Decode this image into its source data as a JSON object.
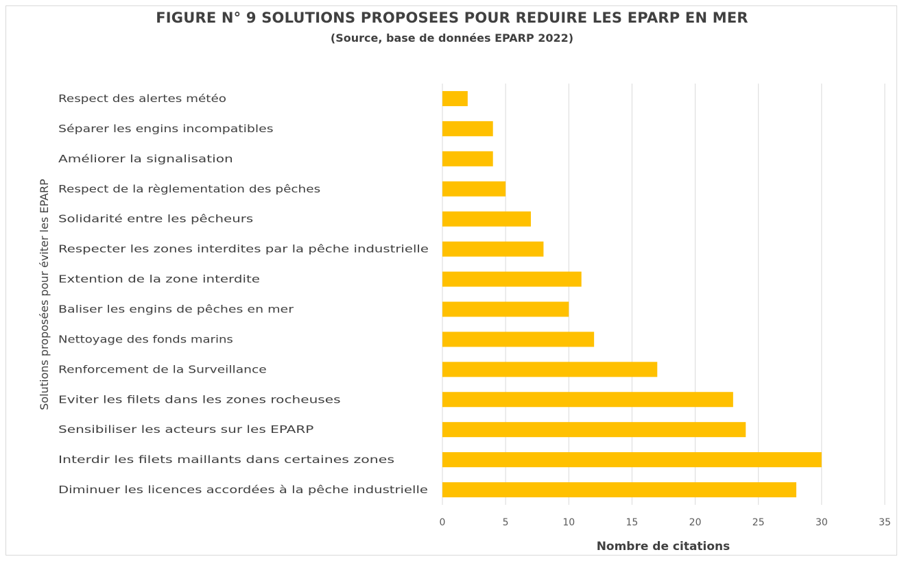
{
  "chart_data": {
    "type": "bar",
    "orientation": "horizontal",
    "title": "FIGURE N° 9 SOLUTIONS PROPOSEES POUR REDUIRE LES EPARP EN MER",
    "subtitle": "(Source, base de données EPARP 2022)",
    "xlabel": "Nombre de citations",
    "ylabel": "Solutions proposées pour éviter les EPARP",
    "xlim": [
      0,
      35
    ],
    "xticks": [
      0,
      5,
      10,
      15,
      20,
      25,
      30,
      35
    ],
    "grid": true,
    "legend": "none",
    "bar_color": "#FFC000",
    "categories": [
      "Respect des alertes météo",
      "Séparer les engins incompatibles",
      "Améliorer la signalisation",
      "Respect de la règlementation des pêches",
      "Solidarité entre les pêcheurs",
      "Respecter les zones interdites par la pêche industrielle",
      "Extention de la zone interdite",
      "Baliser les engins de pêches en mer",
      "Nettoyage des fonds marins",
      "Renforcement de la Surveillance",
      "Eviter les filets dans les zones rocheuses",
      "Sensibiliser les acteurs sur les EPARP",
      "Interdir les filets maillants dans certaines zones",
      "Diminuer les licences accordées à la pêche industrielle"
    ],
    "values": [
      2,
      4,
      4,
      5,
      7,
      8,
      11,
      10,
      12,
      17,
      23,
      24,
      30,
      28
    ]
  }
}
